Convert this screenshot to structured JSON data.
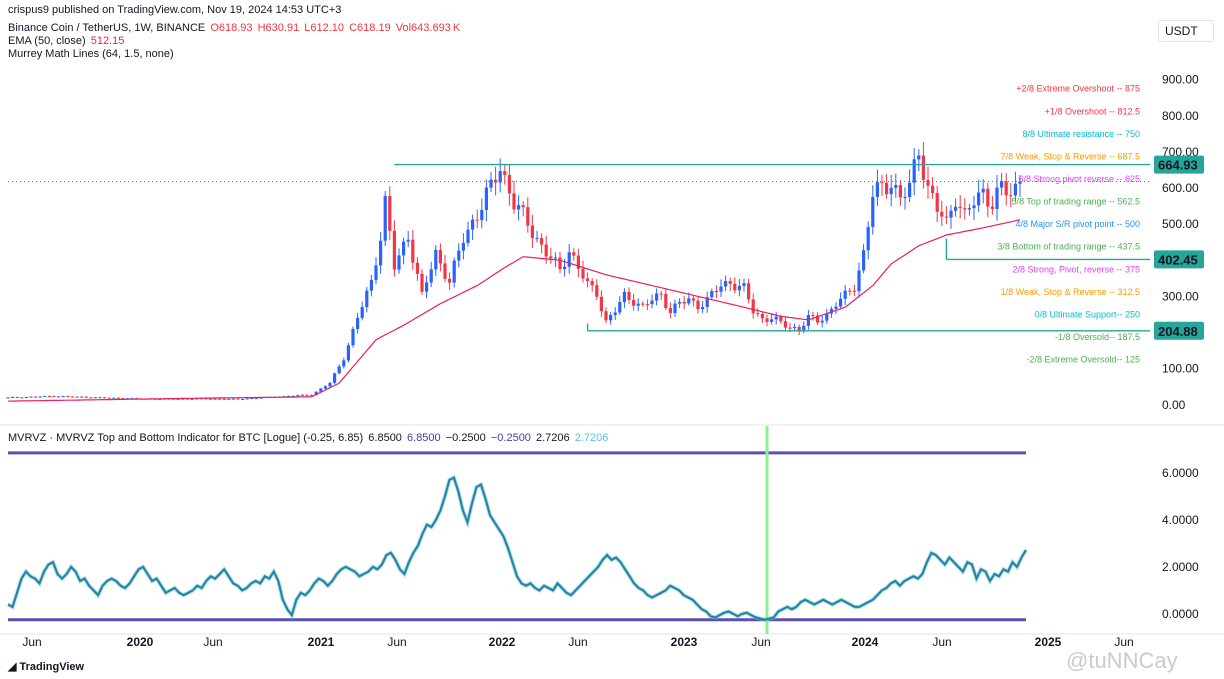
{
  "header": {
    "published": "crispus9 published on TradingView.com, Nov 19, 2024 14:53 UTC+3",
    "symbol": "Binance Coin / TetherUS, 1W, BINANCE",
    "open": "O618.93",
    "high": "H630.91",
    "low": "L612.10",
    "close": "C618.19",
    "vol": "Vol643.693",
    "vol_unit": "K",
    "ema_label": "EMA (50, close)",
    "ema_value": "512.15",
    "murrey_label": "Murrey Math Lines (64, 1.5, none)",
    "unit": "USDT",
    "indicator_label": "MVRVZ · MVRVZ Top and Bottom Indicator for BTC [Logue] (-0.25, 6.85)",
    "indicator_values": [
      "6.8500",
      "6.8500",
      "−0.2500",
      "−0.2500",
      "2.7206",
      "2.7206"
    ],
    "logo": "TradingView",
    "watermark": "@tuNNCay"
  },
  "colors": {
    "up": "#2962ff",
    "down": "#f23645",
    "ema": "#e91e63",
    "teal": "#26a69a",
    "indicator": "#2a7f9b",
    "indicator_glow": "#64c8e6",
    "band": "#5b4fb1",
    "vline": "#8ef08e"
  },
  "chart_data": [
    {
      "type": "candlestick",
      "title": "Binance Coin / TetherUS, 1W, BINANCE",
      "ylabel": "USDT",
      "ylim": [
        -20,
        960
      ],
      "y_ticks": [
        "900.00",
        "800.00",
        "700.00",
        "600.00",
        "500.00",
        "400.00",
        "300.00",
        "200.00",
        "100.00",
        "0.00"
      ],
      "x_ticks": [
        "Jun",
        "2020",
        "Jun",
        "2021",
        "Jun",
        "2022",
        "Jun",
        "2023",
        "Jun",
        "2024",
        "Jun",
        "2025",
        "Jun"
      ],
      "price_markers": [
        {
          "label": "664.93",
          "value": 664.93
        },
        {
          "label": "402.45",
          "value": 402.45
        },
        {
          "label": "204.88",
          "value": 204.88
        }
      ],
      "last_price": 618.19,
      "murrey_lines": [
        {
          "label": "+2/8 Extreme Overshoot --  875",
          "value": 875,
          "color": "#f23645"
        },
        {
          "label": "+1/8 Overshoot --  812.5",
          "value": 812.5,
          "color": "#f23645"
        },
        {
          "label": "8/8 Ultimate resistance --  750",
          "value": 750,
          "color": "#00bcd4"
        },
        {
          "label": "7/8 Weak, Stop & Reverse --  687.5",
          "value": 687.5,
          "color": "#ff9800"
        },
        {
          "label": "6/8 Strong pivot reverse --  625",
          "value": 625,
          "color": "#e040fb"
        },
        {
          "label": "5/8 Top of trading range --  562.5",
          "value": 562.5,
          "color": "#4caf50"
        },
        {
          "label": "4/8 Major S/R pivot point --  500",
          "value": 500,
          "color": "#2196f3"
        },
        {
          "label": "3/8 Bottom of trading range --  437.5",
          "value": 437.5,
          "color": "#4caf50"
        },
        {
          "label": "2/8 Strong, Pivot, reverse --  375",
          "value": 375,
          "color": "#e040fb"
        },
        {
          "label": "1/8 Weak, Stop & Reverse --  312.5",
          "value": 312.5,
          "color": "#ff9800"
        },
        {
          "label": "0/8 Ultimate Support--  250",
          "value": 250,
          "color": "#00bcd4"
        },
        {
          "label": "-1/8 Oversold--  187.5",
          "value": 187.5,
          "color": "#4caf50"
        },
        {
          "label": "-2/8 Extreme Oversold--  125",
          "value": 125,
          "color": "#4caf50"
        }
      ],
      "close_anchors": [
        [
          0,
          20
        ],
        [
          10,
          24
        ],
        [
          20,
          20
        ],
        [
          32,
          16
        ],
        [
          42,
          17
        ],
        [
          50,
          16
        ],
        [
          58,
          22
        ],
        [
          66,
          28
        ],
        [
          70,
          60
        ],
        [
          73,
          130
        ],
        [
          76,
          240
        ],
        [
          79,
          340
        ],
        [
          81,
          470
        ],
        [
          82,
          560
        ],
        [
          84,
          380
        ],
        [
          87,
          470
        ],
        [
          90,
          300
        ],
        [
          93,
          420
        ],
        [
          96,
          340
        ],
        [
          99,
          460
        ],
        [
          102,
          530
        ],
        [
          105,
          600
        ],
        [
          107,
          660
        ],
        [
          110,
          560
        ],
        [
          113,
          500
        ],
        [
          116,
          440
        ],
        [
          120,
          370
        ],
        [
          122,
          430
        ],
        [
          124,
          380
        ],
        [
          126,
          330
        ],
        [
          128,
          310
        ],
        [
          130,
          230
        ],
        [
          132,
          260
        ],
        [
          134,
          300
        ],
        [
          136,
          290
        ],
        [
          138,
          270
        ],
        [
          140,
          290
        ],
        [
          142,
          305
        ],
        [
          144,
          260
        ],
        [
          146,
          280
        ],
        [
          148,
          290
        ],
        [
          150,
          275
        ],
        [
          152,
          290
        ],
        [
          155,
          330
        ],
        [
          157,
          340
        ],
        [
          160,
          320
        ],
        [
          162,
          260
        ],
        [
          164,
          238
        ],
        [
          166,
          240
        ],
        [
          168,
          225
        ],
        [
          170,
          215
        ],
        [
          172,
          210
        ],
        [
          174,
          240
        ],
        [
          176,
          232
        ],
        [
          178,
          250
        ],
        [
          180,
          280
        ],
        [
          182,
          300
        ],
        [
          184,
          330
        ],
        [
          186,
          420
        ],
        [
          188,
          580
        ],
        [
          190,
          600
        ],
        [
          192,
          620
        ],
        [
          194,
          570
        ],
        [
          196,
          600
        ],
        [
          198,
          710
        ],
        [
          200,
          600
        ],
        [
          202,
          540
        ],
        [
          204,
          500
        ],
        [
          206,
          580
        ],
        [
          208,
          520
        ],
        [
          210,
          560
        ],
        [
          212,
          590
        ],
        [
          214,
          560
        ],
        [
          216,
          600
        ],
        [
          218,
          580
        ],
        [
          220,
          618
        ]
      ],
      "ema_anchors": [
        [
          0,
          10
        ],
        [
          40,
          18
        ],
        [
          66,
          22
        ],
        [
          72,
          60
        ],
        [
          76,
          120
        ],
        [
          80,
          180
        ],
        [
          86,
          220
        ],
        [
          94,
          280
        ],
        [
          102,
          330
        ],
        [
          108,
          380
        ],
        [
          112,
          410
        ],
        [
          120,
          400
        ],
        [
          130,
          360
        ],
        [
          140,
          330
        ],
        [
          150,
          300
        ],
        [
          160,
          270
        ],
        [
          168,
          245
        ],
        [
          174,
          235
        ],
        [
          182,
          270
        ],
        [
          188,
          330
        ],
        [
          192,
          390
        ],
        [
          198,
          440
        ],
        [
          204,
          470
        ],
        [
          212,
          490
        ],
        [
          220,
          512
        ]
      ]
    },
    {
      "type": "line",
      "title": "MVRVZ · MVRVZ Top and Bottom Indicator for BTC [Logue]",
      "ylim": [
        -0.6,
        7.4
      ],
      "y_ticks": [
        "6.0000",
        "4.0000",
        "2.0000",
        "0.0000"
      ],
      "bands": [
        6.85,
        -0.25
      ],
      "last_value": 2.7206,
      "values": [
        0.4,
        0.3,
        0.9,
        1.5,
        1.8,
        1.6,
        1.5,
        1.3,
        1.8,
        2.1,
        2.2,
        1.7,
        1.5,
        1.7,
        2.0,
        1.8,
        1.4,
        1.5,
        1.2,
        1.0,
        0.8,
        1.2,
        1.4,
        1.5,
        1.4,
        1.2,
        1.1,
        1.3,
        1.6,
        1.9,
        2.0,
        1.7,
        1.4,
        1.5,
        1.2,
        0.9,
        1.0,
        1.1,
        0.9,
        0.8,
        0.9,
        1.0,
        1.2,
        1.1,
        1.4,
        1.6,
        1.5,
        1.7,
        1.9,
        1.6,
        1.3,
        1.2,
        1.0,
        1.1,
        1.3,
        1.4,
        1.3,
        1.6,
        1.5,
        1.8,
        1.4,
        0.6,
        0.2,
        -0.05,
        0.6,
        0.9,
        0.8,
        1.0,
        1.3,
        1.5,
        1.4,
        1.2,
        1.4,
        1.7,
        1.9,
        2.0,
        1.9,
        1.8,
        1.6,
        1.7,
        1.8,
        2.0,
        1.9,
        2.1,
        2.5,
        2.6,
        2.3,
        1.9,
        1.7,
        2.2,
        2.6,
        2.9,
        3.4,
        3.8,
        3.7,
        4.0,
        4.4,
        5.0,
        5.7,
        5.8,
        5.2,
        4.4,
        3.9,
        4.7,
        5.4,
        5.5,
        4.9,
        4.2,
        3.9,
        3.6,
        3.3,
        2.8,
        2.2,
        1.6,
        1.3,
        1.2,
        1.3,
        1.1,
        1.0,
        1.2,
        1.1,
        1.0,
        1.3,
        1.1,
        0.9,
        0.8,
        1.0,
        1.2,
        1.4,
        1.6,
        1.8,
        2.0,
        2.3,
        2.5,
        2.3,
        2.4,
        2.2,
        1.9,
        1.6,
        1.3,
        1.1,
        1.0,
        0.8,
        0.7,
        0.8,
        0.9,
        1.0,
        1.2,
        1.1,
        1.0,
        0.8,
        0.7,
        0.6,
        0.4,
        0.2,
        0.1,
        -0.1,
        -0.15,
        -0.05,
        0.05,
        0.1,
        0.0,
        -0.1,
        0.0,
        0.05,
        -0.05,
        -0.15,
        -0.2,
        -0.25,
        -0.2,
        -0.15,
        0.1,
        0.2,
        0.3,
        0.2,
        0.3,
        0.5,
        0.6,
        0.5,
        0.4,
        0.5,
        0.6,
        0.5,
        0.4,
        0.5,
        0.6,
        0.5,
        0.4,
        0.3,
        0.3,
        0.4,
        0.5,
        0.6,
        0.8,
        1.0,
        1.1,
        1.3,
        1.4,
        1.2,
        1.4,
        1.5,
        1.6,
        1.5,
        1.7,
        2.2,
        2.6,
        2.5,
        2.3,
        2.1,
        2.4,
        2.2,
        2.0,
        1.8,
        2.2,
        2.1,
        1.5,
        1.9,
        1.8,
        1.4,
        1.7,
        1.6,
        1.9,
        1.8,
        2.2,
        2.0,
        2.4,
        2.7206
      ]
    }
  ]
}
